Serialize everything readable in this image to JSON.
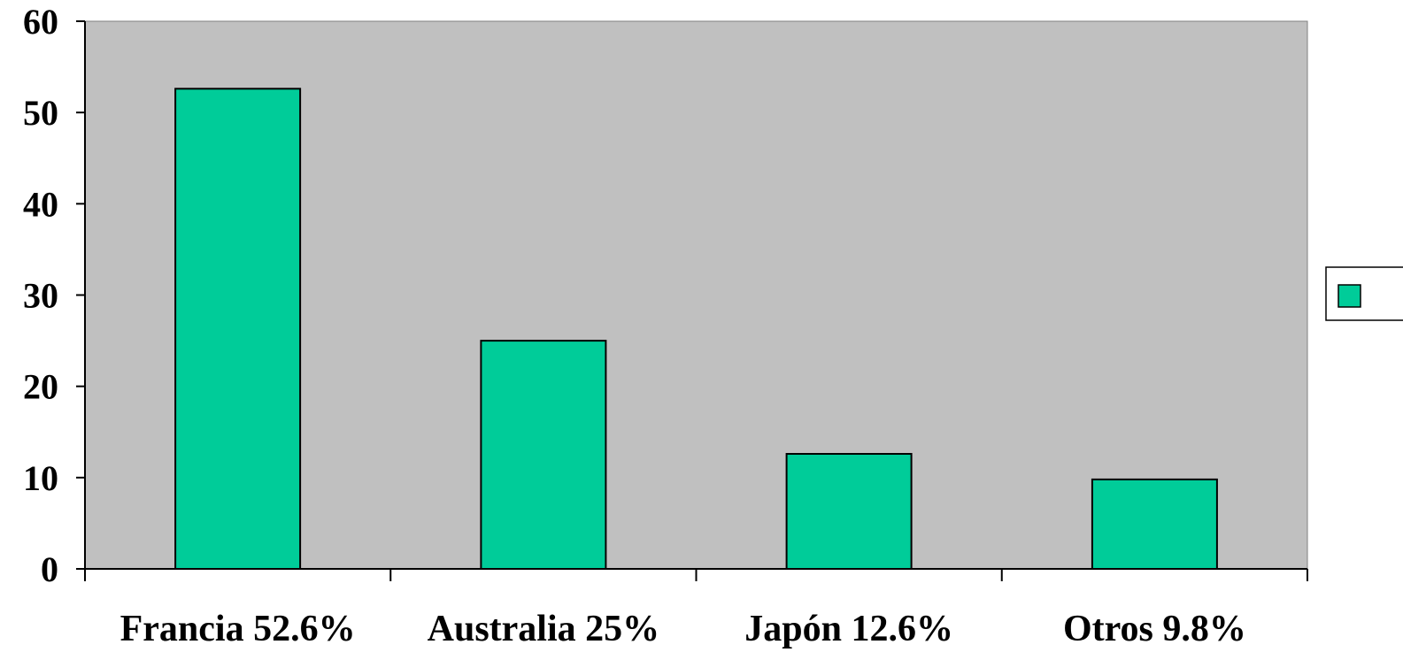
{
  "chart_data": {
    "type": "bar",
    "categories": [
      "Francia 52.6%",
      "Australia 25%",
      "Japón 12.6%",
      "Otros 9.8%"
    ],
    "series": [
      {
        "values": [
          52.6,
          25,
          12.6,
          9.8
        ]
      }
    ],
    "ylim": [
      0,
      60
    ],
    "yticks": [
      0,
      10,
      20,
      30,
      40,
      50,
      60
    ],
    "grid": false,
    "legend": "right",
    "colors": {
      "plot_background": "#c0c0c0",
      "bar_fill": "#00cc99",
      "bar_stroke": "#000000"
    }
  }
}
